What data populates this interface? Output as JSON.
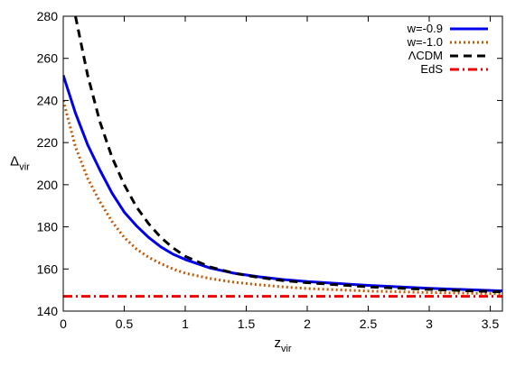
{
  "chart_data": {
    "type": "line",
    "xlabel_main": "z",
    "xlabel_sub": "vir",
    "ylabel_main": "Δ",
    "ylabel_sub": "vir",
    "xlim": [
      0,
      3.6
    ],
    "ylim": [
      140,
      280
    ],
    "xticks": [
      0,
      0.5,
      1,
      1.5,
      2,
      2.5,
      3,
      3.5
    ],
    "xtick_labels": [
      "0",
      "0.5",
      "1",
      "1.5",
      "2",
      "2.5",
      "3",
      "3.5"
    ],
    "yticks": [
      140,
      160,
      180,
      200,
      220,
      240,
      260,
      280
    ],
    "ytick_labels": [
      "140",
      "160",
      "180",
      "200",
      "220",
      "240",
      "260",
      "280"
    ],
    "grid": false,
    "legend_position": "top-right",
    "series": [
      {
        "name": "w=-0.9",
        "color": "#0000ee",
        "style": "solid",
        "x": [
          0,
          0.1,
          0.2,
          0.3,
          0.4,
          0.5,
          0.6,
          0.7,
          0.8,
          0.9,
          1.0,
          1.2,
          1.4,
          1.6,
          1.8,
          2.0,
          2.5,
          3.0,
          3.5,
          3.6
        ],
        "y": [
          252,
          234,
          219,
          207,
          196,
          187,
          180.5,
          175,
          170.5,
          167,
          164.5,
          160.5,
          158,
          156.3,
          155,
          154,
          152.2,
          150.8,
          149.8,
          149.6
        ]
      },
      {
        "name": "w=-1.0",
        "color": "#cc5500",
        "style": "dotted",
        "x": [
          0,
          0.1,
          0.2,
          0.3,
          0.4,
          0.5,
          0.6,
          0.7,
          0.8,
          0.9,
          1.0,
          1.2,
          1.4,
          1.6,
          1.8,
          2.0,
          2.5,
          3.0,
          3.5,
          3.6
        ],
        "y": [
          240,
          218,
          203,
          192,
          182.5,
          175,
          169.5,
          165.5,
          162.5,
          160,
          158,
          155.5,
          153.7,
          152.5,
          151.5,
          150.7,
          149.5,
          148.8,
          148.3,
          148.2
        ]
      },
      {
        "name": "ΛCDM",
        "color": "#000000",
        "style": "dashed",
        "x": [
          0.1,
          0.2,
          0.3,
          0.4,
          0.5,
          0.6,
          0.7,
          0.8,
          0.9,
          1.0,
          1.2,
          1.4,
          1.6,
          1.8,
          2.0,
          2.5,
          3.0,
          3.5,
          3.6
        ],
        "y": [
          280,
          252,
          230,
          213,
          200,
          189.5,
          181.5,
          175,
          170,
          166,
          161,
          158,
          156,
          154.5,
          153.5,
          151.5,
          150.3,
          149.3,
          149.2
        ]
      },
      {
        "name": "EdS",
        "color": "#ee0000",
        "style": "dashdot",
        "x": [
          0,
          3.6
        ],
        "y": [
          147,
          147
        ]
      }
    ]
  }
}
